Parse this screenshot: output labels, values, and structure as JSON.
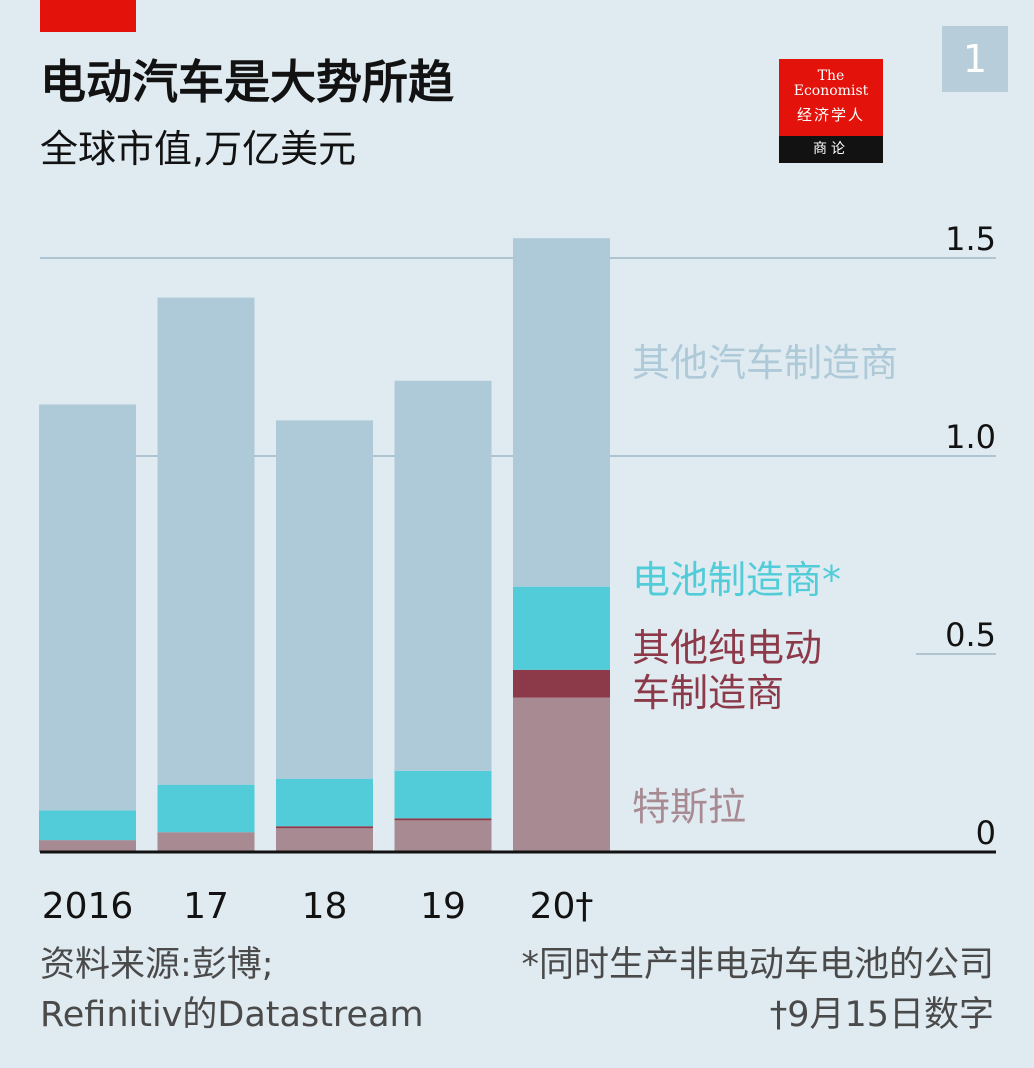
{
  "header": {
    "title": "电动汽车是大势所趋",
    "subtitle": "全球市值,万亿美元",
    "chart_number": "1"
  },
  "logo": {
    "name_en": "The\nEconomist",
    "name_cn": "经济学人",
    "tagline": "商论"
  },
  "footer": {
    "source_line1": "资料来源:彭博;",
    "source_line2": "Refinitiv的Datastream",
    "note1": "*同时生产非电动车电池的公司",
    "note2": "†9月15日数字"
  },
  "colors": {
    "background": "#e0ebf1",
    "other_carmakers": "#aecad8",
    "battery_makers": "#52ccd8",
    "other_pure_ev": "#8c3a49",
    "tesla": "#a88a93",
    "gridline": "#aec4d2",
    "brand_red": "#e3120b"
  },
  "chart_data": {
    "type": "bar",
    "stacked": true,
    "categories": [
      "2016",
      "17",
      "18",
      "19",
      "20†"
    ],
    "series": [
      {
        "name": "特斯拉",
        "values": [
          0.03,
          0.05,
          0.06,
          0.08,
          0.39
        ],
        "color": "#a88a93"
      },
      {
        "name": "其他纯电动车制造商",
        "values": [
          0.0,
          0.0,
          0.005,
          0.005,
          0.07
        ],
        "color": "#8c3a49"
      },
      {
        "name": "电池制造商*",
        "values": [
          0.075,
          0.12,
          0.12,
          0.12,
          0.21
        ],
        "color": "#52ccd8"
      },
      {
        "name": "其他汽车制造商",
        "values": [
          1.025,
          1.23,
          0.905,
          0.985,
          0.88
        ],
        "color": "#aecad8"
      }
    ],
    "series_label_lines": [
      [
        "其他汽车制造商"
      ],
      [
        "电池制造商*"
      ],
      [
        "其他纯电动",
        "车制造商"
      ],
      [
        "特斯拉"
      ]
    ],
    "ylim": [
      0,
      1.5
    ],
    "yticks": [
      "0",
      "0.5",
      "1.0",
      "1.5"
    ],
    "ytick_values": [
      0,
      0.5,
      1.0,
      1.5
    ],
    "grid": true,
    "y_axis_position": "right"
  }
}
